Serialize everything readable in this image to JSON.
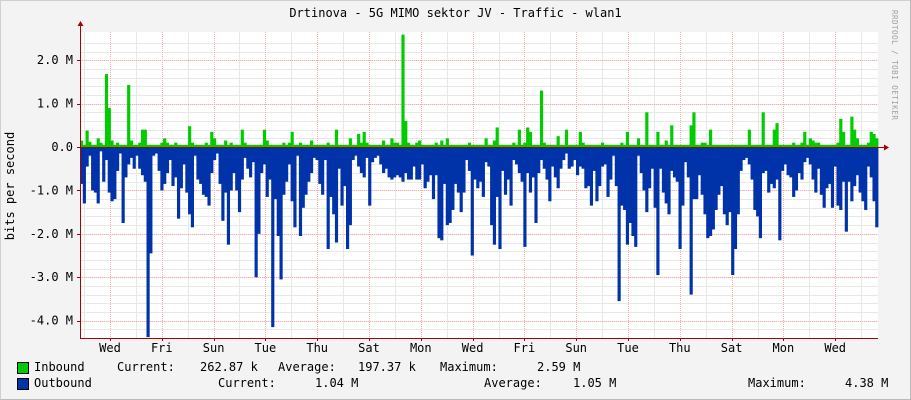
{
  "title": "Drtinova - 5G MIMO sektor JV - Traffic - wlan1",
  "side_label": "RRDTOOL / TOBI OETIKER",
  "colors": {
    "inbound": "#00cc00",
    "inbound_edge": "#009900",
    "outbound": "#0033aa",
    "outbound_edge": "#002288",
    "grid": "#ffaaaa",
    "axis": "#aa0000"
  },
  "legend": {
    "inbound": {
      "name": "Inbound",
      "current_label": "Current:",
      "current": "262.87 k",
      "average_label": "Average:",
      "average": "197.37 k",
      "maximum_label": "Maximum:",
      "maximum": "2.59 M"
    },
    "outbound": {
      "name": "Outbound",
      "current_label": "Current:",
      "current": "1.04 M",
      "average_label": "Average:",
      "average": "1.05 M",
      "maximum_label": "Maximum:",
      "maximum": "4.38 M"
    }
  },
  "chart_data": {
    "type": "area",
    "ylabel": "bits per second",
    "ylim": [
      -4.4,
      2.65
    ],
    "yticks": [
      2.0,
      1.0,
      0.0,
      -1.0,
      -2.0,
      -3.0,
      -4.0
    ],
    "yticklabels": [
      "2.0 M",
      "1.0 M",
      "0.0",
      "-1.0 M",
      "-2.0 M",
      "-3.0 M",
      "-4.0 M"
    ],
    "xtick_labels": [
      "Wed",
      "Fri",
      "Sun",
      "Tue",
      "Thu",
      "Sat",
      "Mon",
      "Wed",
      "Fri",
      "Sun",
      "Tue",
      "Thu",
      "Sat",
      "Mon",
      "Wed"
    ],
    "units": "M bits per second",
    "series": [
      {
        "name": "Inbound",
        "values": [
          0.15,
          0.05,
          0.38,
          0.12,
          0.05,
          0.05,
          0.2,
          0.1,
          0.05,
          1.68,
          0.9,
          0.15,
          0.05,
          0.1,
          0.05,
          0.05,
          0.05,
          1.43,
          0.15,
          0.05,
          0.05,
          0.1,
          0.4,
          0.4,
          0.05,
          0.05,
          0.05,
          0.05,
          0.05,
          0.1,
          0.2,
          0.1,
          0.05,
          0.05,
          0.1,
          0.05,
          0.05,
          0.05,
          0.05,
          0.48,
          0.1,
          0.05,
          0.05,
          0.05,
          0.05,
          0.1,
          0.05,
          0.35,
          0.2,
          0.05,
          0.05,
          0.05,
          0.15,
          0.05,
          0.1,
          0.05,
          0.05,
          0.05,
          0.4,
          0.1,
          0.05,
          0.05,
          0.05,
          0.05,
          0.05,
          0.05,
          0.4,
          0.15,
          0.05,
          0.05,
          0.05,
          0.05,
          0.05,
          0.1,
          0.05,
          0.1,
          0.35,
          0.05,
          0.05,
          0.1,
          0.05,
          0.05,
          0.05,
          0.15,
          0.05,
          0.05,
          0.05,
          0.05,
          0.05,
          0.1,
          0.05,
          0.05,
          0.4,
          0.05,
          0.05,
          0.05,
          0.05,
          0.2,
          0.05,
          0.05,
          0.3,
          0.1,
          0.35,
          0.1,
          0.05,
          0.05,
          0.05,
          0.05,
          0.05,
          0.15,
          0.05,
          0.05,
          0.2,
          0.1,
          0.1,
          0.05,
          2.59,
          0.6,
          0.1,
          0.05,
          0.05,
          0.1,
          0.15,
          0.05,
          0.05,
          0.05,
          0.05,
          0.05,
          0.1,
          0.05,
          0.15,
          0.05,
          0.2,
          0.05,
          0.05,
          0.05,
          0.05,
          0.05,
          0.05,
          0.05,
          0.1,
          0.05,
          0.05,
          0.05,
          0.05,
          0.05,
          0.2,
          0.05,
          0.05,
          0.15,
          0.45,
          0.05,
          0.05,
          0.05,
          0.05,
          0.05,
          0.1,
          0.05,
          0.4,
          0.05,
          0.1,
          0.45,
          0.35,
          0.05,
          0.05,
          0.05,
          1.3,
          0.1,
          0.05,
          0.05,
          0.05,
          0.05,
          0.25,
          0.05,
          0.05,
          0.4,
          0.05,
          0.05,
          0.05,
          0.05,
          0.35,
          0.1,
          0.05,
          0.05,
          0.05,
          0.05,
          0.05,
          0.05,
          0.1,
          0.05,
          0.05,
          0.05,
          0.05,
          0.05,
          0.05,
          0.1,
          0.05,
          0.35,
          0.05,
          0.05,
          0.05,
          0.2,
          0.05,
          0.05,
          0.8,
          0.05,
          0.05,
          0.05,
          0.35,
          0.05,
          0.05,
          0.15,
          0.05,
          0.5,
          0.05,
          0.05,
          0.05,
          0.05,
          0.05,
          0.05,
          0.5,
          0.8,
          0.05,
          0.05,
          0.1,
          0.1,
          0.05,
          0.4,
          0.05,
          0.05,
          0.05,
          0.05,
          0.05,
          0.05,
          0.05,
          0.05,
          0.05,
          0.05,
          0.05,
          0.05,
          0.05,
          0.4,
          0.05,
          0.05,
          0.05,
          0.05,
          0.8,
          0.05,
          0.05,
          0.05,
          0.4,
          0.55,
          0.05,
          0.05,
          0.05,
          0.05,
          0.05,
          0.1,
          0.05,
          0.05,
          0.1,
          0.35,
          0.05,
          0.2,
          0.15,
          0.1,
          0.1,
          0.05,
          0.05,
          0.05,
          0.05,
          0.05,
          0.05,
          0.1,
          0.65,
          0.35,
          0.05,
          0.05,
          0.7,
          0.4,
          0.2,
          0.05,
          0.05,
          0.05,
          0.1,
          0.35,
          0.3,
          0.2
        ]
      },
      {
        "name": "Outbound",
        "values": [
          -0.85,
          -1.3,
          -0.45,
          -0.2,
          -1.0,
          -1.05,
          -1.3,
          -0.1,
          -0.8,
          -0.3,
          -1.05,
          -1.25,
          -1.2,
          -0.55,
          -0.15,
          -1.75,
          -0.7,
          -0.4,
          -0.25,
          -0.5,
          -0.2,
          -0.5,
          -0.65,
          -0.8,
          -4.38,
          -2.45,
          -0.2,
          -0.15,
          -0.55,
          -1.0,
          -0.85,
          -0.6,
          -0.3,
          -0.9,
          -0.7,
          -1.65,
          -0.95,
          -0.4,
          -1.05,
          -1.55,
          -1.85,
          -0.2,
          -0.75,
          -0.85,
          -1.1,
          -1.15,
          -1.35,
          -0.6,
          -0.3,
          -0.15,
          -0.85,
          -1.7,
          -1.05,
          -2.25,
          -1.0,
          -0.6,
          -1.0,
          -1.5,
          -0.75,
          -0.25,
          -0.5,
          -0.7,
          -0.35,
          -3.0,
          -2.0,
          -0.6,
          -0.4,
          -1.15,
          -0.75,
          -4.15,
          -1.2,
          -2.05,
          -3.05,
          -1.1,
          -0.8,
          -0.4,
          -1.25,
          -1.85,
          -0.2,
          -2.05,
          -1.4,
          -1.1,
          -0.8,
          -0.6,
          -0.25,
          -0.3,
          -0.85,
          -1.1,
          -0.3,
          -2.35,
          -1.15,
          -1.55,
          -2.2,
          -0.5,
          -1.35,
          -0.9,
          -2.35,
          -1.8,
          -0.3,
          -0.2,
          -0.45,
          -0.6,
          -0.7,
          -0.25,
          -1.35,
          -0.35,
          -0.25,
          -0.2,
          -0.4,
          -0.6,
          -0.5,
          -0.7,
          -0.75,
          -0.7,
          -0.65,
          -0.7,
          -0.8,
          -0.6,
          -0.75,
          -0.75,
          -0.45,
          -0.75,
          -0.75,
          -0.4,
          -0.95,
          -0.8,
          -0.65,
          -1.2,
          -0.65,
          -2.1,
          -2.15,
          -0.85,
          -1.8,
          -1.75,
          -1.45,
          -0.85,
          -1.05,
          -1.5,
          -1.05,
          -0.3,
          -0.55,
          -2.5,
          -0.75,
          -0.95,
          -0.8,
          -1.15,
          -0.35,
          -0.45,
          -1.8,
          -2.25,
          -1.15,
          -2.35,
          -0.55,
          -1.1,
          -0.75,
          -1.35,
          -0.3,
          -0.4,
          -0.6,
          -0.8,
          -2.3,
          -0.6,
          -1.05,
          -0.7,
          -1.75,
          -0.6,
          -0.3,
          -0.5,
          -0.75,
          -1.25,
          -0.45,
          -0.7,
          -0.95,
          -0.5,
          -0.3,
          -0.15,
          -0.5,
          -0.45,
          -0.3,
          -0.65,
          -0.45,
          -0.5,
          -0.95,
          -0.9,
          -1.35,
          -0.55,
          -1.25,
          -0.9,
          -0.45,
          -0.4,
          -1.15,
          -0.75,
          -0.2,
          -0.9,
          -3.55,
          -1.35,
          -1.45,
          -2.25,
          -1.75,
          -2.05,
          -2.3,
          -0.2,
          -0.6,
          -1.0,
          -1.5,
          -0.95,
          -0.5,
          -1.4,
          -2.95,
          -0.5,
          -1.05,
          -1.3,
          -1.55,
          -0.55,
          -0.7,
          -0.8,
          -2.35,
          -1.35,
          -0.35,
          -0.7,
          -3.4,
          -1.2,
          -1.2,
          -0.65,
          -1.1,
          -1.55,
          -2.1,
          -2.05,
          -1.9,
          -1.45,
          -1.1,
          -0.9,
          -1.55,
          -1.8,
          -1.5,
          -2.95,
          -2.35,
          -1.55,
          -0.55,
          -0.3,
          -0.25,
          -0.4,
          -0.75,
          -1.45,
          -1.6,
          -2.1,
          -0.6,
          -0.55,
          -1.05,
          -0.85,
          -0.95,
          -0.75,
          -2.15,
          -0.55,
          -0.4,
          -0.65,
          -0.7,
          -1.15,
          -1.0,
          -0.6,
          -0.75,
          -0.35,
          -0.25,
          -0.4,
          -0.75,
          -1.05,
          -0.5,
          -1.1,
          -1.4,
          -0.95,
          -0.85,
          -1.4,
          -0.45,
          -1.35,
          -1.45,
          -0.8,
          -1.95,
          -0.8,
          -1.25,
          -0.9,
          -0.65,
          -1.05,
          -1.25,
          -1.45,
          -0.45,
          -0.7,
          -1.25,
          -1.85,
          -0.85,
          -0.65,
          -1.0,
          -0.4,
          -1.2,
          -1.4,
          -1.05,
          -1.2,
          -1.35,
          -1.05,
          -1.95,
          -1.6,
          -1.35,
          -1.45,
          -1.35,
          -1.55,
          -1.3,
          -1.0,
          -0.65,
          -1.05,
          -1.6,
          -1.35,
          -1.45,
          -1.35
        ]
      }
    ]
  }
}
